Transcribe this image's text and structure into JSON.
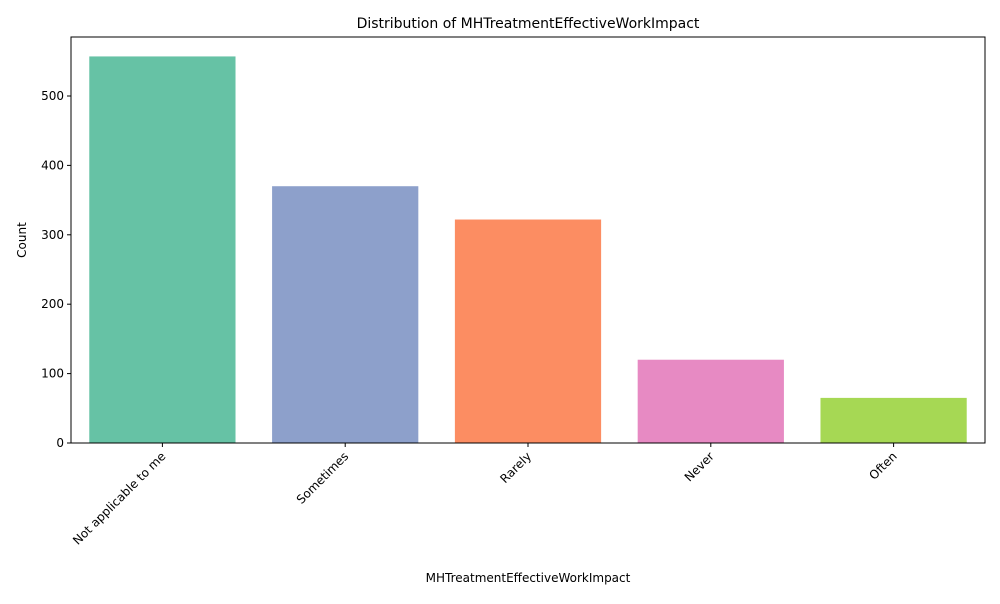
{
  "chart_data": {
    "type": "bar",
    "title": "Distribution of MHTreatmentEffectiveWorkImpact",
    "xlabel": "MHTreatmentEffectiveWorkImpact",
    "ylabel": "Count",
    "categories": [
      "Not applicable to me",
      "Sometimes",
      "Rarely",
      "Never",
      "Often"
    ],
    "values": [
      557,
      370,
      322,
      120,
      65
    ],
    "colors": [
      "#66c2a5",
      "#8da0cb",
      "#fc8d62",
      "#e78ac3",
      "#a6d854"
    ],
    "ylim": [
      0,
      585
    ],
    "yticks": [
      0,
      100,
      200,
      300,
      400,
      500
    ],
    "grid": false,
    "legend": "none"
  }
}
